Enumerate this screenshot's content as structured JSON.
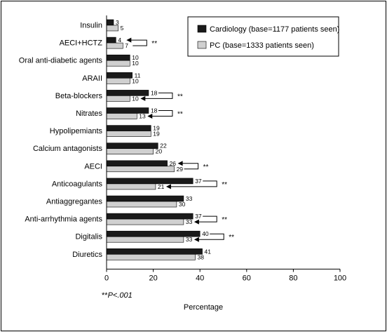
{
  "chart_data": {
    "type": "bar",
    "orientation": "horizontal",
    "categories": [
      "Insulin",
      "AECI+HCTZ",
      "Oral anti-diabetic agents",
      "ARAII",
      "Beta-blockers",
      "Nitrates",
      "Hypolipemiants",
      "Calcium antagonists",
      "AECI",
      "Anticoagulants",
      "Antiaggregantes",
      "Anti-arrhythmia agents",
      "Digitalis",
      "Diuretics"
    ],
    "series": [
      {
        "name": "Cardiology (base=1177 patients seen)",
        "values": [
          3,
          4,
          10,
          11,
          18,
          18,
          19,
          22,
          26,
          37,
          33,
          37,
          40,
          41
        ],
        "color": "#1a1a1a"
      },
      {
        "name": "PC (base=1333 patients seen)",
        "values": [
          5,
          7,
          10,
          10,
          10,
          13,
          19,
          20,
          29,
          21,
          30,
          33,
          33,
          38
        ],
        "color": "#d0d0d0"
      }
    ],
    "significant": [
      false,
      true,
      false,
      false,
      true,
      true,
      false,
      false,
      true,
      true,
      false,
      true,
      true,
      false
    ],
    "sig_marker": "**",
    "xlabel": "Percentage",
    "xlim": [
      0,
      100
    ],
    "xticks": [
      0,
      20,
      40,
      60,
      80,
      100
    ],
    "legend_position": "top-right",
    "footnote_stars": "**",
    "footnote_text": "P<.001"
  }
}
